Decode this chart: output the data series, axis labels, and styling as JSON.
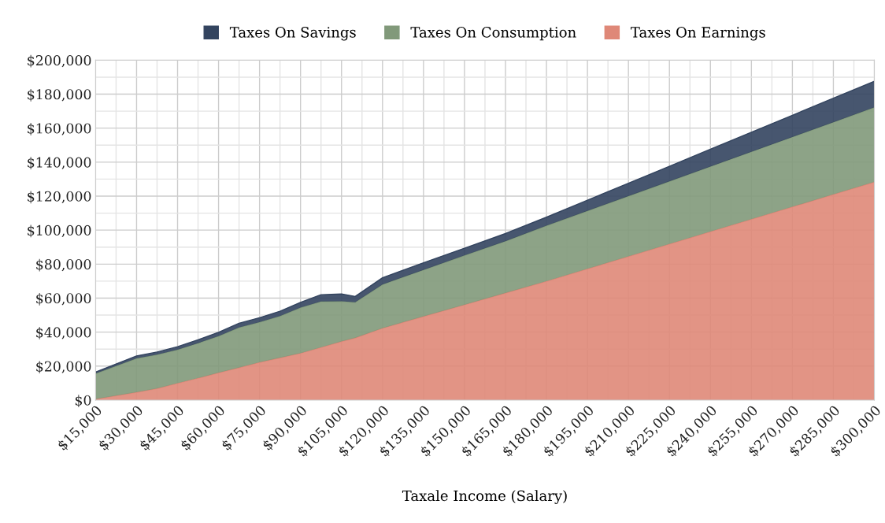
{
  "chart_data": {
    "type": "area",
    "stacked": true,
    "xlabel": "Taxale Income (Salary)",
    "legend": "top",
    "grid": true,
    "x": [
      15000,
      30000,
      37500,
      45000,
      52500,
      60000,
      67500,
      75000,
      82500,
      90000,
      97500,
      105000,
      110000,
      120000,
      135000,
      150000,
      165000,
      180000,
      195000,
      210000,
      225000,
      240000,
      255000,
      270000,
      285000,
      300000
    ],
    "series": [
      {
        "name": "Taxes On Earnings",
        "color": "#df8878",
        "values": [
          600,
          4600,
          6800,
          9900,
          12900,
          16100,
          19100,
          22200,
          24900,
          27600,
          31000,
          34500,
          36600,
          42300,
          49200,
          56100,
          63000,
          69900,
          77200,
          84500,
          91800,
          99100,
          106400,
          113700,
          121000,
          128300
        ]
      },
      {
        "name": "Taxes On Consumption",
        "color": "#81997a",
        "values": [
          15000,
          19900,
          19900,
          19700,
          20600,
          21500,
          23600,
          23600,
          24500,
          26800,
          27000,
          23600,
          20900,
          25700,
          27400,
          29000,
          30500,
          32700,
          34100,
          35500,
          36900,
          38300,
          39700,
          41100,
          42500,
          43900
        ]
      },
      {
        "name": "Taxes On Savings",
        "color": "#33445f",
        "values": [
          900,
          1500,
          1600,
          1800,
          2000,
          2300,
          2500,
          2700,
          2900,
          3100,
          4000,
          4300,
          3500,
          4000,
          4200,
          4300,
          4500,
          5000,
          6300,
          7600,
          8900,
          10200,
          11500,
          12800,
          14100,
          15400
        ]
      }
    ],
    "xlim": [
      15000,
      300000
    ],
    "ylim": [
      0,
      200000
    ],
    "xticks": [
      {
        "value": 15000,
        "label": "$15,000"
      },
      {
        "value": 22500,
        "label": null
      },
      {
        "value": 30000,
        "label": "$30,000"
      },
      {
        "value": 37500,
        "label": null
      },
      {
        "value": 45000,
        "label": "$45,000"
      },
      {
        "value": 52500,
        "label": null
      },
      {
        "value": 60000,
        "label": "$60,000"
      },
      {
        "value": 67500,
        "label": null
      },
      {
        "value": 75000,
        "label": "$75,000"
      },
      {
        "value": 82500,
        "label": null
      },
      {
        "value": 90000,
        "label": "$90,000"
      },
      {
        "value": 97500,
        "label": null
      },
      {
        "value": 105000,
        "label": "$105,000"
      },
      {
        "value": 112500,
        "label": null
      },
      {
        "value": 120000,
        "label": "$120,000"
      },
      {
        "value": 127500,
        "label": null
      },
      {
        "value": 135000,
        "label": "$135,000"
      },
      {
        "value": 142500,
        "label": null
      },
      {
        "value": 150000,
        "label": "$150,000"
      },
      {
        "value": 157500,
        "label": null
      },
      {
        "value": 165000,
        "label": "$165,000"
      },
      {
        "value": 172500,
        "label": null
      },
      {
        "value": 180000,
        "label": "$180,000"
      },
      {
        "value": 187500,
        "label": null
      },
      {
        "value": 195000,
        "label": "$195,000"
      },
      {
        "value": 202500,
        "label": null
      },
      {
        "value": 210000,
        "label": "$210,000"
      },
      {
        "value": 217500,
        "label": null
      },
      {
        "value": 225000,
        "label": "$225,000"
      },
      {
        "value": 232500,
        "label": null
      },
      {
        "value": 240000,
        "label": "$240,000"
      },
      {
        "value": 247500,
        "label": null
      },
      {
        "value": 255000,
        "label": "$255,000"
      },
      {
        "value": 262500,
        "label": null
      },
      {
        "value": 270000,
        "label": "$270,000"
      },
      {
        "value": 277500,
        "label": null
      },
      {
        "value": 285000,
        "label": "$285,000"
      },
      {
        "value": 292500,
        "label": null
      },
      {
        "value": 300000,
        "label": "$300,000"
      }
    ],
    "yticks": [
      {
        "value": 0,
        "label": "$0"
      },
      {
        "value": 20000,
        "label": "$20,000"
      },
      {
        "value": 30000,
        "label": null
      },
      {
        "value": 40000,
        "label": "$40,000"
      },
      {
        "value": 50000,
        "label": null
      },
      {
        "value": 60000,
        "label": "$60,000"
      },
      {
        "value": 70000,
        "label": null
      },
      {
        "value": 80000,
        "label": "$80,000"
      },
      {
        "value": 90000,
        "label": null
      },
      {
        "value": 100000,
        "label": "$100,000"
      },
      {
        "value": 110000,
        "label": null
      },
      {
        "value": 120000,
        "label": "$120,000"
      },
      {
        "value": 130000,
        "label": null
      },
      {
        "value": 140000,
        "label": "$140,000"
      },
      {
        "value": 150000,
        "label": null
      },
      {
        "value": 160000,
        "label": "$160,000"
      },
      {
        "value": 170000,
        "label": null
      },
      {
        "value": 180000,
        "label": "$180,000"
      },
      {
        "value": 190000,
        "label": null
      },
      {
        "value": 200000,
        "label": "$200,000"
      }
    ]
  }
}
